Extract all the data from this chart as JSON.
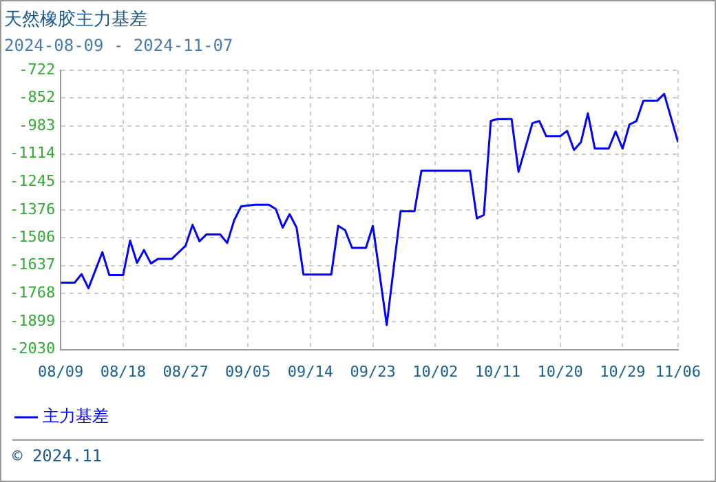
{
  "chart_data": {
    "type": "line",
    "title": "天然橡胶主力基差",
    "subtitle": "2024-08-09 - 2024-11-07",
    "x": [
      "2024-08-09",
      "2024-08-11",
      "2024-08-12",
      "2024-08-13",
      "2024-08-15",
      "2024-08-16",
      "2024-08-18",
      "2024-08-19",
      "2024-08-20",
      "2024-08-21",
      "2024-08-22",
      "2024-08-23",
      "2024-08-25",
      "2024-08-27",
      "2024-08-28",
      "2024-08-29",
      "2024-08-30",
      "2024-09-01",
      "2024-09-02",
      "2024-09-03",
      "2024-09-04",
      "2024-09-06",
      "2024-09-08",
      "2024-09-09",
      "2024-09-10",
      "2024-09-11",
      "2024-09-12",
      "2024-09-13",
      "2024-09-17",
      "2024-09-18",
      "2024-09-19",
      "2024-09-20",
      "2024-09-22",
      "2024-09-23",
      "2024-09-25",
      "2024-09-27",
      "2024-09-29",
      "2024-09-30",
      "2024-10-07",
      "2024-10-08",
      "2024-10-09",
      "2024-10-10",
      "2024-10-11",
      "2024-10-13",
      "2024-10-14",
      "2024-10-16",
      "2024-10-17",
      "2024-10-18",
      "2024-10-20",
      "2024-10-21",
      "2024-10-22",
      "2024-10-23",
      "2024-10-24",
      "2024-10-25",
      "2024-10-27",
      "2024-10-28",
      "2024-10-29",
      "2024-10-30",
      "2024-10-31",
      "2024-11-01",
      "2024-11-03",
      "2024-11-04",
      "2024-11-06"
    ],
    "series": [
      {
        "name": "主力基差",
        "color": "#0000ff",
        "values": [
          -1717,
          -1717,
          -1677,
          -1743,
          -1574,
          -1681,
          -1681,
          -1520,
          -1624,
          -1564,
          -1627,
          -1606,
          -1606,
          -1544,
          -1446,
          -1523,
          -1491,
          -1491,
          -1531,
          -1425,
          -1360,
          -1352,
          -1352,
          -1372,
          -1459,
          -1396,
          -1459,
          -1679,
          -1679,
          -1451,
          -1471,
          -1554,
          -1554,
          -1451,
          -1915,
          -1382,
          -1382,
          -1193,
          -1193,
          -1416,
          -1400,
          -960,
          -950,
          -950,
          -1198,
          -970,
          -960,
          -1031,
          -1031,
          -1006,
          -1095,
          -1059,
          -924,
          -1089,
          -1089,
          -1009,
          -1089,
          -976,
          -960,
          -865,
          -865,
          -833,
          -1059
        ]
      }
    ],
    "xlim": [
      "2024-08-09",
      "2024-11-06"
    ],
    "xticks": [
      {
        "value": "2024-08-09",
        "label": "08/09"
      },
      {
        "value": "2024-08-18",
        "label": "08/18"
      },
      {
        "value": "2024-08-27",
        "label": "08/27"
      },
      {
        "value": "2024-09-05",
        "label": "09/05"
      },
      {
        "value": "2024-09-14",
        "label": "09/14"
      },
      {
        "value": "2024-09-23",
        "label": "09/23"
      },
      {
        "value": "2024-10-02",
        "label": "10/02"
      },
      {
        "value": "2024-10-11",
        "label": "10/11"
      },
      {
        "value": "2024-10-20",
        "label": "10/20"
      },
      {
        "value": "2024-10-29",
        "label": "10/29"
      },
      {
        "value": "2024-11-06",
        "label": "11/06"
      }
    ],
    "ylim": [
      -2030,
      -722
    ],
    "yticks": [
      -2030,
      -1899,
      -1768,
      -1637,
      -1506,
      -1376,
      -1245,
      -1114,
      -983,
      -852,
      -722
    ],
    "grid": true,
    "legend": "bottom left",
    "marker": "none",
    "line_style": "solid",
    "annotations": [
      "© 2024.11"
    ]
  }
}
